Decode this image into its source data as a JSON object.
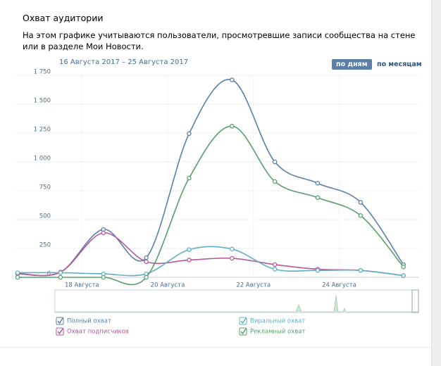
{
  "chart_data": {
    "type": "line",
    "title": "Охват аудитории",
    "description": "На этом графике учитываются пользователи, просмотревшие записи сообщества на стене или в разделе Мои Новости.",
    "date_range": "16 Августа 2017 – 25 Августа 2017",
    "buttons": [
      "по дням",
      "по месяцам"
    ],
    "x": [
      16,
      17,
      18,
      19,
      20,
      21,
      22,
      23,
      24,
      25
    ],
    "xlim": [
      15.95,
      25.35
    ],
    "xticks": [
      {
        "value": 17.5,
        "label": "18 Августа"
      },
      {
        "value": 19.5,
        "label": "20 Августа"
      },
      {
        "value": 21.5,
        "label": "22 Августа"
      },
      {
        "value": 23.5,
        "label": "24 Августа"
      }
    ],
    "ylim": [
      0,
      1750
    ],
    "yticks": [
      0,
      250,
      500,
      750,
      {
        "value": 1000,
        "label": "1 000"
      },
      {
        "value": 1250,
        "label": "1 250"
      },
      {
        "value": 1500,
        "label": "1 500"
      },
      {
        "value": 1750,
        "label": "1 750"
      }
    ],
    "grid": true,
    "series": [
      {
        "name": "Полный охват",
        "color": "#5b7fa6",
        "values": [
          35,
          45,
          415,
          170,
          1245,
          1710,
          1000,
          815,
          650,
          110
        ]
      },
      {
        "name": "Охват подписчиков",
        "color": "#b5589a",
        "values": [
          30,
          45,
          385,
          135,
          150,
          165,
          110,
          70,
          60,
          15
        ]
      },
      {
        "name": "Виральный охват",
        "color": "#5fb0c2",
        "values": [
          40,
          40,
          30,
          30,
          240,
          245,
          70,
          60,
          60,
          15
        ]
      },
      {
        "name": "Рекламный охват",
        "color": "#5a9e6f",
        "values": [
          0,
          0,
          0,
          0,
          860,
          1310,
          830,
          690,
          535,
          90
        ]
      }
    ]
  }
}
